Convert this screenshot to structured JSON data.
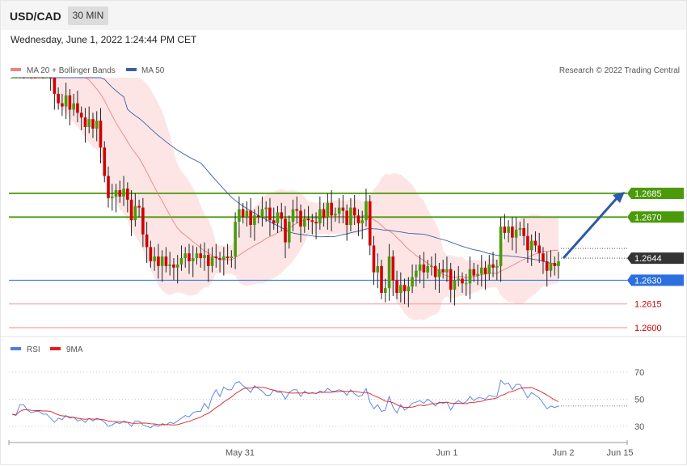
{
  "header": {
    "symbol": "USD/CAD",
    "timeframe": "30 MIN"
  },
  "timestamp": "Wednesday, June 1, 2022 1:24:44 PM CET",
  "legend": {
    "ma20": "MA 20 + Bollinger Bands",
    "ma50": "MA 50",
    "rsi": "RSI",
    "ma9": "9MA",
    "credit": "Research © 2022 Trading Central"
  },
  "colors": {
    "bull": "#4a9a0a",
    "bear": "#d10000",
    "band": "#fde0e0",
    "ma20": "#f08080",
    "ma50": "#3a5fa8",
    "support": "#2b6fe0",
    "resistance": "#4a9a0a",
    "target_line": "#f4a0a0",
    "target_text": "#d10000",
    "arrow": "#2b5aa8",
    "rsi": "#4f7de8",
    "rsi_ma": "#e02020",
    "current": "#333333"
  },
  "chart_data": [
    {
      "type": "candlestick",
      "title": "USD/CAD",
      "ylim": [
        1.259,
        1.2815
      ],
      "x_ticks": [
        "May 31",
        "Jun 1",
        "Jun 2",
        "Jun 15"
      ],
      "price_levels": [
        {
          "label": "1.2685",
          "value": 1.2685,
          "kind": "resistance"
        },
        {
          "label": "1.2670",
          "value": 1.267,
          "kind": "resistance"
        },
        {
          "label": "1.2644",
          "value": 1.2644,
          "kind": "current"
        },
        {
          "label": "1.2630",
          "value": 1.263,
          "kind": "support"
        },
        {
          "label": "1.2615",
          "value": 1.2615,
          "kind": "target"
        },
        {
          "label": "1.2600",
          "value": 1.26,
          "kind": "target"
        }
      ],
      "forecast_arrow": {
        "from": 1.2644,
        "to": 1.2685
      },
      "close": [
        1.2777,
        1.2784,
        1.2787,
        1.2779,
        1.2779,
        1.2778,
        1.2776,
        1.2778,
        1.2765,
        1.2767,
        1.2758,
        1.2748,
        1.2742,
        1.274,
        1.2747,
        1.2738,
        1.2742,
        1.2736,
        1.2733,
        1.2727,
        1.2732,
        1.2726,
        1.2731,
        1.2714,
        1.2696,
        1.2682,
        1.2683,
        1.2687,
        1.2683,
        1.2688,
        1.2681,
        1.2668,
        1.2677,
        1.2676,
        1.2659,
        1.2651,
        1.2642,
        1.2645,
        1.2639,
        1.2645,
        1.2639,
        1.264,
        1.2638,
        1.264,
        1.2644,
        1.2647,
        1.2642,
        1.2644,
        1.2647,
        1.2644,
        1.2646,
        1.2639,
        1.2645,
        1.2644,
        1.2643,
        1.2645,
        1.2644,
        1.2645,
        1.2667,
        1.2675,
        1.267,
        1.2674,
        1.2665,
        1.2671,
        1.267,
        1.2675,
        1.2676,
        1.2668,
        1.2666,
        1.2673,
        1.2669,
        1.2654,
        1.2667,
        1.2675,
        1.2674,
        1.2664,
        1.2669,
        1.2668,
        1.2667,
        1.2666,
        1.2675,
        1.267,
        1.2679,
        1.2671,
        1.2672,
        1.2676,
        1.2674,
        1.2665,
        1.2676,
        1.2671,
        1.2666,
        1.2668,
        1.268,
        1.2652,
        1.2635,
        1.2639,
        1.2622,
        1.2625,
        1.2645,
        1.263,
        1.2622,
        1.2627,
        1.2623,
        1.2626,
        1.2632,
        1.2636,
        1.264,
        1.2635,
        1.2639,
        1.2639,
        1.2632,
        1.2637,
        1.2635,
        1.2637,
        1.2624,
        1.263,
        1.2631,
        1.2628,
        1.2628,
        1.2637,
        1.2633,
        1.2634,
        1.2638,
        1.2634,
        1.264,
        1.2638,
        1.2639,
        1.2664,
        1.266,
        1.2664,
        1.2657,
        1.2662,
        1.2663,
        1.2658,
        1.2649,
        1.2655,
        1.2652,
        1.2647,
        1.2642,
        1.2636,
        1.2641,
        1.2639,
        1.2642
      ],
      "ma20_open": [
        1.2772,
        1.2771,
        1.2771,
        1.2771,
        1.277,
        1.277,
        1.277,
        1.2769,
        1.2768,
        1.2767,
        1.2765,
        1.2764,
        1.2761,
        1.2759,
        1.2757,
        1.2754,
        1.2752,
        1.275,
        1.2747,
        1.2744,
        1.2741,
        1.2738,
        1.2735,
        1.2732,
        1.2728,
        1.2725,
        1.2722,
        1.2719,
        1.2716,
        1.2713,
        1.271,
        1.2707,
        1.2704,
        1.2701,
        1.2698,
        1.2695,
        1.2692,
        1.2689,
        1.2686,
        1.2683,
        1.268,
        1.2677,
        1.2674,
        1.2671,
        1.2668,
        1.2665,
        1.2663,
        1.266,
        1.2658,
        1.2656,
        1.2654,
        1.2652,
        1.2651,
        1.265,
        1.2649,
        1.2648,
        1.2648,
        1.2648,
        1.2648,
        1.2649,
        1.265,
        1.2651,
        1.2652,
        1.2653,
        1.2654,
        1.2655,
        1.2656,
        1.2657,
        1.2658,
        1.2659,
        1.266,
        1.2661,
        1.2662,
        1.2663,
        1.2664,
        1.2665,
        1.2666,
        1.2667,
        1.2668,
        1.2669,
        1.267,
        1.267,
        1.267,
        1.267,
        1.267,
        1.2669,
        1.2668,
        1.2667,
        1.2665,
        1.2663,
        1.2661,
        1.2659,
        1.2657,
        1.2655,
        1.2652,
        1.265,
        1.2648,
        1.2646,
        1.2644,
        1.2642,
        1.264,
        1.2638,
        1.2636,
        1.2635,
        1.2634,
        1.2633,
        1.2633,
        1.2633,
        1.2633,
        1.2633,
        1.2634,
        1.2634,
        1.2634,
        1.2634,
        1.2634,
        1.2634,
        1.2635,
        1.2635,
        1.2636,
        1.2637,
        1.2638,
        1.2639,
        1.264,
        1.2641,
        1.2642,
        1.2643,
        1.2644,
        1.2645,
        1.2646,
        1.2647,
        1.2648,
        1.2649,
        1.265,
        1.2651,
        1.2652,
        1.2653,
        1.2654,
        1.2655,
        1.2655,
        1.2655,
        1.2655,
        1.2655,
        1.2654
      ],
      "rsi": [
        39,
        38,
        46,
        46,
        42,
        40,
        41,
        41,
        39,
        39,
        36,
        33,
        36,
        35,
        38,
        36,
        37,
        34,
        35,
        33,
        36,
        34,
        36,
        35,
        33,
        30,
        31,
        33,
        32,
        34,
        33,
        30,
        34,
        34,
        31,
        30,
        29,
        31,
        30,
        32,
        31,
        33,
        32,
        34,
        36,
        38,
        37,
        40,
        41,
        41,
        47,
        43,
        52,
        57,
        52,
        59,
        57,
        57,
        62,
        63,
        60,
        58,
        55,
        60,
        58,
        56,
        53,
        53,
        57,
        55,
        55,
        50,
        55,
        57,
        57,
        52,
        56,
        54,
        55,
        54,
        56,
        55,
        58,
        56,
        56,
        57,
        56,
        53,
        57,
        54,
        52,
        53,
        58,
        48,
        43,
        46,
        41,
        42,
        52,
        44,
        40,
        46,
        42,
        44,
        47,
        48,
        49,
        47,
        50,
        48,
        45,
        48,
        47,
        48,
        42,
        47,
        49,
        47,
        48,
        52,
        49,
        51,
        51,
        50,
        53,
        52,
        52,
        64,
        61,
        62,
        57,
        61,
        61,
        56,
        51,
        55,
        53,
        51,
        47,
        43,
        45,
        44,
        45
      ],
      "rsi_ticks": [
        "70",
        "50",
        "30"
      ]
    }
  ]
}
